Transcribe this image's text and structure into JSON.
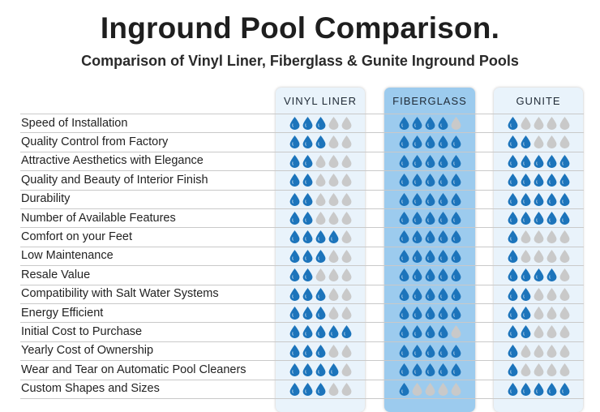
{
  "title": "Inground Pool Comparison.",
  "subtitle": "Comparison of Vinyl Liner, Fiberglass & Gunite Inground Pools",
  "colors": {
    "filled_drop": "#1c74bb",
    "empty_drop": "#c9c9c9",
    "fiberglass_panel": "#9ccbee",
    "side_panel": "#e9f3fb"
  },
  "columns": [
    "VINYL LINER",
    "FIBERGLASS",
    "GUNITE"
  ],
  "max_rating": 5,
  "rows": [
    {
      "label": "Speed of Installation",
      "ratings": [
        3,
        4,
        1
      ]
    },
    {
      "label": "Quality Control from Factory",
      "ratings": [
        3,
        5,
        2
      ]
    },
    {
      "label": "Attractive Aesthetics with Elegance",
      "ratings": [
        2,
        5,
        5
      ]
    },
    {
      "label": "Quality and Beauty of Interior Finish",
      "ratings": [
        2,
        5,
        5
      ]
    },
    {
      "label": "Durability",
      "ratings": [
        2,
        5,
        5
      ]
    },
    {
      "label": "Number of Available Features",
      "ratings": [
        2,
        5,
        5
      ]
    },
    {
      "label": "Comfort on your Feet",
      "ratings": [
        4,
        5,
        1
      ]
    },
    {
      "label": "Low Maintenance",
      "ratings": [
        3,
        5,
        1
      ]
    },
    {
      "label": "Resale Value",
      "ratings": [
        2,
        5,
        4
      ]
    },
    {
      "label": "Compatibility with Salt Water Systems",
      "ratings": [
        3,
        5,
        2
      ]
    },
    {
      "label": "Energy Efficient",
      "ratings": [
        3,
        5,
        2
      ]
    },
    {
      "label": "Initial Cost to Purchase",
      "ratings": [
        5,
        4,
        2
      ]
    },
    {
      "label": "Yearly Cost of Ownership",
      "ratings": [
        3,
        5,
        1
      ]
    },
    {
      "label": "Wear and Tear on Automatic  Pool Cleaners",
      "ratings": [
        4,
        5,
        1
      ]
    },
    {
      "label": "Custom Shapes and Sizes",
      "ratings": [
        3,
        1,
        5
      ]
    }
  ]
}
